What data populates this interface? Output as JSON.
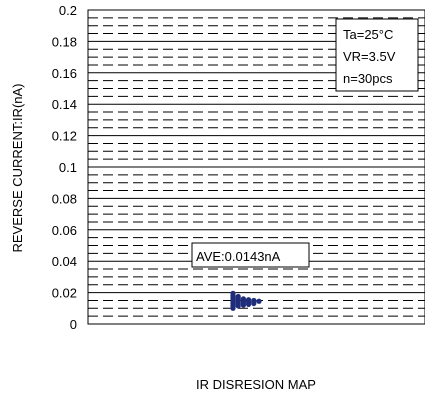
{
  "chart_data": {
    "type": "scatter",
    "title": "",
    "xlabel": "IR DISRESION MAP",
    "ylabel": "REVERSE CURRENT:IR(nA)",
    "ylim": [
      0,
      0.2
    ],
    "yticks": [
      0,
      0.02,
      0.04,
      0.06,
      0.08,
      0.1,
      0.12,
      0.14,
      0.16,
      0.18,
      0.2
    ],
    "ytick_labels": [
      "0",
      "0.02",
      "0.04",
      "0.06",
      "0.08",
      "0.1",
      "0.12",
      "0.14",
      "0.16",
      "0.18",
      "0.2"
    ],
    "grid": "major solid every 0.02, minor dashed every 0.005",
    "conditions": [
      "Ta=25°C",
      "VR=3.5V",
      "n=30pcs"
    ],
    "conditions_placement": "top-right",
    "average_label": "AVE:0.0143nA",
    "average_value": 0.0143,
    "point_color": "#1f2d7a",
    "series": [
      {
        "values": [
          0.0195,
          0.018,
          0.017,
          0.016,
          0.015,
          0.014,
          0.013,
          0.012,
          0.011,
          0.01,
          0.0175,
          0.0165,
          0.0155,
          0.0145,
          0.0135,
          0.0125,
          0.0115,
          0.016,
          0.015,
          0.014,
          0.013,
          0.012,
          0.0155,
          0.0145,
          0.0135,
          0.0125,
          0.015,
          0.014,
          0.013,
          0.0145
        ]
      }
    ]
  }
}
